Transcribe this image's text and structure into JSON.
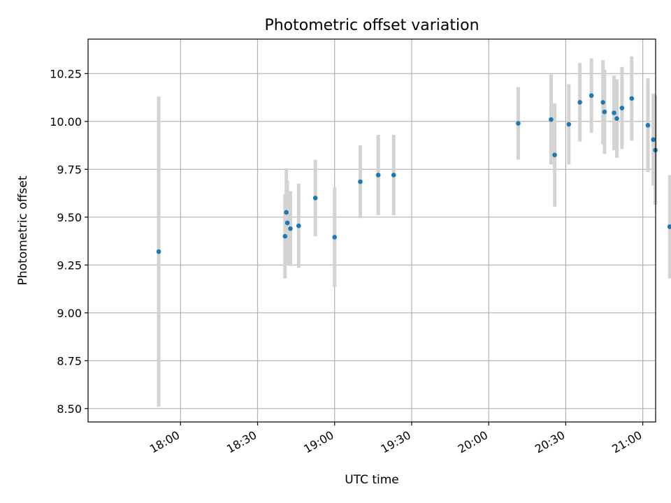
{
  "chart_data": {
    "type": "scatter",
    "title": "Photometric offset variation",
    "xlabel": "UTC time",
    "ylabel": "Photometric offset",
    "grid": true,
    "xlim_minutes": [
      1044,
      1265
    ],
    "ylim": [
      8.43,
      10.43
    ],
    "x_ticks": [
      {
        "minutes": 1080,
        "label": "18:00"
      },
      {
        "minutes": 1110,
        "label": "18:30"
      },
      {
        "minutes": 1140,
        "label": "19:00"
      },
      {
        "minutes": 1170,
        "label": "19:30"
      },
      {
        "minutes": 1200,
        "label": "20:00"
      },
      {
        "minutes": 1230,
        "label": "20:30"
      },
      {
        "minutes": 1260,
        "label": "21:00"
      }
    ],
    "y_ticks": [
      {
        "value": 8.5,
        "label": "8.50"
      },
      {
        "value": 8.75,
        "label": "8.75"
      },
      {
        "value": 9.0,
        "label": "9.00"
      },
      {
        "value": 9.25,
        "label": "9.25"
      },
      {
        "value": 9.5,
        "label": "9.50"
      },
      {
        "value": 9.75,
        "label": "9.75"
      },
      {
        "value": 10.0,
        "label": "10.00"
      },
      {
        "value": 10.25,
        "label": "10.25"
      }
    ],
    "series": [
      {
        "name": "offset",
        "marker_color": "#1f77b4",
        "errorbar_color": "#d3d3d3",
        "points": [
          {
            "t": 1071.5,
            "y": 9.32,
            "err": 0.81
          },
          {
            "t": 1120.7,
            "y": 9.4,
            "err": 0.22
          },
          {
            "t": 1121.2,
            "y": 9.525,
            "err": 0.23
          },
          {
            "t": 1121.6,
            "y": 9.47,
            "err": 0.22
          },
          {
            "t": 1122.8,
            "y": 9.44,
            "err": 0.195
          },
          {
            "t": 1126.0,
            "y": 9.455,
            "err": 0.22
          },
          {
            "t": 1132.5,
            "y": 9.6,
            "err": 0.2
          },
          {
            "t": 1140.0,
            "y": 9.395,
            "err": 0.26
          },
          {
            "t": 1150.0,
            "y": 9.685,
            "err": 0.19
          },
          {
            "t": 1157.0,
            "y": 9.72,
            "err": 0.21
          },
          {
            "t": 1163.0,
            "y": 9.72,
            "err": 0.21
          },
          {
            "t": 1211.5,
            "y": 9.99,
            "err": 0.19
          },
          {
            "t": 1224.3,
            "y": 10.01,
            "err": 0.235
          },
          {
            "t": 1225.7,
            "y": 9.825,
            "err": 0.27
          },
          {
            "t": 1231.2,
            "y": 9.985,
            "err": 0.21
          },
          {
            "t": 1235.5,
            "y": 10.1,
            "err": 0.205
          },
          {
            "t": 1240.0,
            "y": 10.135,
            "err": 0.195
          },
          {
            "t": 1244.5,
            "y": 10.1,
            "err": 0.22
          },
          {
            "t": 1245.1,
            "y": 10.05,
            "err": 0.22
          },
          {
            "t": 1248.8,
            "y": 10.045,
            "err": 0.195
          },
          {
            "t": 1249.9,
            "y": 10.015,
            "err": 0.205
          },
          {
            "t": 1251.9,
            "y": 10.07,
            "err": 0.215
          },
          {
            "t": 1255.7,
            "y": 10.12,
            "err": 0.22
          },
          {
            "t": 1262.0,
            "y": 9.98,
            "err": 0.245
          },
          {
            "t": 1264.1,
            "y": 9.905,
            "err": 0.24
          },
          {
            "t": 1264.9,
            "y": 9.85,
            "err": 0.285
          },
          {
            "t": 1270.5,
            "y": 9.45,
            "err": 0.27
          }
        ]
      }
    ]
  }
}
